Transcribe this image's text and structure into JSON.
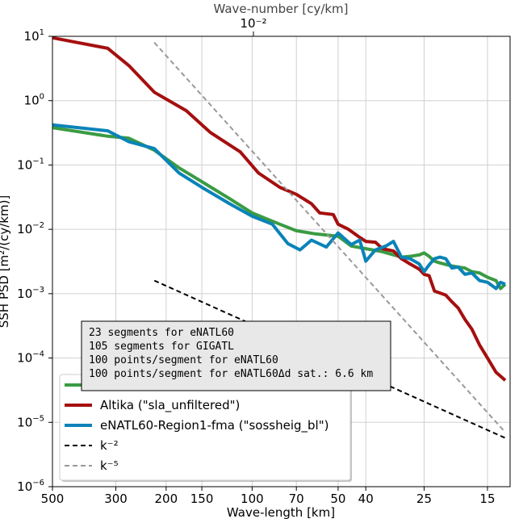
{
  "chart_data": {
    "type": "line",
    "xscale": "log",
    "yscale": "log",
    "xlabel": "Wave-length [km]",
    "ylabel": "SSH PSD [m²/(cy/km)]",
    "top_xlabel": "Wave-number [cy/km]",
    "top_xtick": "10⁻²",
    "xlim": [
      500,
      12.5
    ],
    "ylim": [
      1e-06,
      10
    ],
    "grid": true,
    "x_ticks": [
      {
        "value": 500,
        "label": "500"
      },
      {
        "value": 300,
        "label": "300"
      },
      {
        "value": 200,
        "label": "200"
      },
      {
        "value": 150,
        "label": "150"
      },
      {
        "value": 100,
        "label": "100"
      },
      {
        "value": 70,
        "label": "70"
      },
      {
        "value": 50,
        "label": "50"
      },
      {
        "value": 40,
        "label": "40"
      },
      {
        "value": 25,
        "label": "25"
      },
      {
        "value": 15,
        "label": "15"
      }
    ],
    "y_ticks": [
      {
        "value": 10,
        "base": "10",
        "exp": "1"
      },
      {
        "value": 1,
        "base": "10",
        "exp": "0"
      },
      {
        "value": 0.1,
        "base": "10",
        "exp": "−1"
      },
      {
        "value": 0.01,
        "base": "10",
        "exp": "−2"
      },
      {
        "value": 0.001,
        "base": "10",
        "exp": "−3"
      },
      {
        "value": 0.0001,
        "base": "10",
        "exp": "−4"
      },
      {
        "value": 1e-05,
        "base": "10",
        "exp": "−5"
      },
      {
        "value": 1e-06,
        "base": "10",
        "exp": "−6"
      }
    ],
    "series": [
      {
        "name": "GIGATL",
        "color": "#3a9b43",
        "dash": "",
        "width": 4,
        "points": [
          [
            500,
            0.38
          ],
          [
            320,
            0.28
          ],
          [
            270,
            0.26
          ],
          [
            220,
            0.17
          ],
          [
            180,
            0.09
          ],
          [
            150,
            0.055
          ],
          [
            120,
            0.03
          ],
          [
            100,
            0.018
          ],
          [
            80,
            0.012
          ],
          [
            70,
            0.0095
          ],
          [
            60,
            0.0085
          ],
          [
            50,
            0.0078
          ],
          [
            45,
            0.0055
          ],
          [
            40,
            0.005
          ],
          [
            35,
            0.0045
          ],
          [
            30,
            0.0037
          ],
          [
            28,
            0.0038
          ],
          [
            26,
            0.004
          ],
          [
            25,
            0.0043
          ],
          [
            24,
            0.0038
          ],
          [
            23,
            0.0032
          ],
          [
            22,
            0.003
          ],
          [
            20,
            0.0027
          ],
          [
            19,
            0.0026
          ],
          [
            18,
            0.0025
          ],
          [
            17,
            0.0022
          ],
          [
            16,
            0.0021
          ],
          [
            15,
            0.0018
          ],
          [
            14,
            0.0016
          ],
          [
            13.5,
            0.0012
          ],
          [
            13,
            0.0014
          ]
        ]
      },
      {
        "name": "Altika (\"sla_unfiltered\")",
        "color": "#a50f0f",
        "dash": "",
        "width": 4,
        "points": [
          [
            500,
            9.5
          ],
          [
            320,
            6.5
          ],
          [
            270,
            3.5
          ],
          [
            220,
            1.35
          ],
          [
            170,
            0.7
          ],
          [
            140,
            0.32
          ],
          [
            110,
            0.16
          ],
          [
            95,
            0.075
          ],
          [
            80,
            0.045
          ],
          [
            70,
            0.035
          ],
          [
            62,
            0.025
          ],
          [
            58,
            0.018
          ],
          [
            52,
            0.017
          ],
          [
            50,
            0.012
          ],
          [
            46,
            0.01
          ],
          [
            42,
            0.0075
          ],
          [
            40,
            0.0065
          ],
          [
            37,
            0.0063
          ],
          [
            35,
            0.005
          ],
          [
            32,
            0.0046
          ],
          [
            30,
            0.0035
          ],
          [
            28,
            0.0029
          ],
          [
            26,
            0.0024
          ],
          [
            25,
            0.002
          ],
          [
            24,
            0.0019
          ],
          [
            23,
            0.0011
          ],
          [
            21,
            0.00095
          ],
          [
            20,
            0.00075
          ],
          [
            19,
            0.0006
          ],
          [
            18,
            0.0004
          ],
          [
            17,
            0.00028
          ],
          [
            16,
            0.00016
          ],
          [
            15,
            0.0001
          ],
          [
            14,
            6e-05
          ],
          [
            13,
            4.5e-05
          ]
        ]
      },
      {
        "name": "eNATL60-Region1-fma (\"sossheig_bl\")",
        "color": "#0a83b8",
        "dash": "",
        "width": 4,
        "points": [
          [
            500,
            0.42
          ],
          [
            320,
            0.34
          ],
          [
            270,
            0.23
          ],
          [
            220,
            0.18
          ],
          [
            180,
            0.075
          ],
          [
            150,
            0.045
          ],
          [
            120,
            0.025
          ],
          [
            100,
            0.016
          ],
          [
            85,
            0.012
          ],
          [
            75,
            0.006
          ],
          [
            68,
            0.0048
          ],
          [
            62,
            0.0068
          ],
          [
            55,
            0.0053
          ],
          [
            50,
            0.0088
          ],
          [
            45,
            0.0058
          ],
          [
            42,
            0.0068
          ],
          [
            40,
            0.0032
          ],
          [
            37,
            0.0048
          ],
          [
            34,
            0.0055
          ],
          [
            32,
            0.0065
          ],
          [
            30,
            0.0037
          ],
          [
            28,
            0.0035
          ],
          [
            26,
            0.0029
          ],
          [
            25,
            0.0022
          ],
          [
            24,
            0.0028
          ],
          [
            23,
            0.0035
          ],
          [
            22,
            0.0037
          ],
          [
            21,
            0.0035
          ],
          [
            20,
            0.0025
          ],
          [
            19,
            0.0026
          ],
          [
            18,
            0.002
          ],
          [
            17,
            0.0021
          ],
          [
            16,
            0.0016
          ],
          [
            15,
            0.0015
          ],
          [
            14,
            0.0012
          ],
          [
            13.5,
            0.0015
          ],
          [
            13,
            0.0014
          ]
        ]
      },
      {
        "name": "k⁻²",
        "color": "#000000",
        "dash": "6,4",
        "width": 2,
        "points": [
          [
            220,
            0.0016
          ],
          [
            13,
            5.7e-06
          ]
        ]
      },
      {
        "name": "k⁻⁵",
        "color": "#999999",
        "dash": "6,4",
        "width": 2,
        "points": [
          [
            220,
            8
          ],
          [
            13,
            7e-06
          ]
        ]
      }
    ],
    "legend": {
      "placement": "lower-left",
      "entries": [
        {
          "label": "GIGATL",
          "color": "#3a9b43",
          "dash": "",
          "width": 4
        },
        {
          "label": "Altika (\"sla_unfiltered\")",
          "color": "#a50f0f",
          "dash": "",
          "width": 4
        },
        {
          "label": "eNATL60-Region1-fma (\"sossheig_bl\")",
          "color": "#0a83b8",
          "dash": "",
          "width": 4
        },
        {
          "label": "k⁻²",
          "color": "#000000",
          "dash": "6,4",
          "width": 2
        },
        {
          "label": "k⁻⁵",
          "color": "#999999",
          "dash": "6,4",
          "width": 2
        }
      ]
    },
    "annotation_lines": [
      "23 segments for eNATL60",
      "105 segments for GIGATL",
      "100 points/segment for eNATL60",
      "100 points/segment for eNATL60Δd sat.: 6.6 km"
    ]
  }
}
